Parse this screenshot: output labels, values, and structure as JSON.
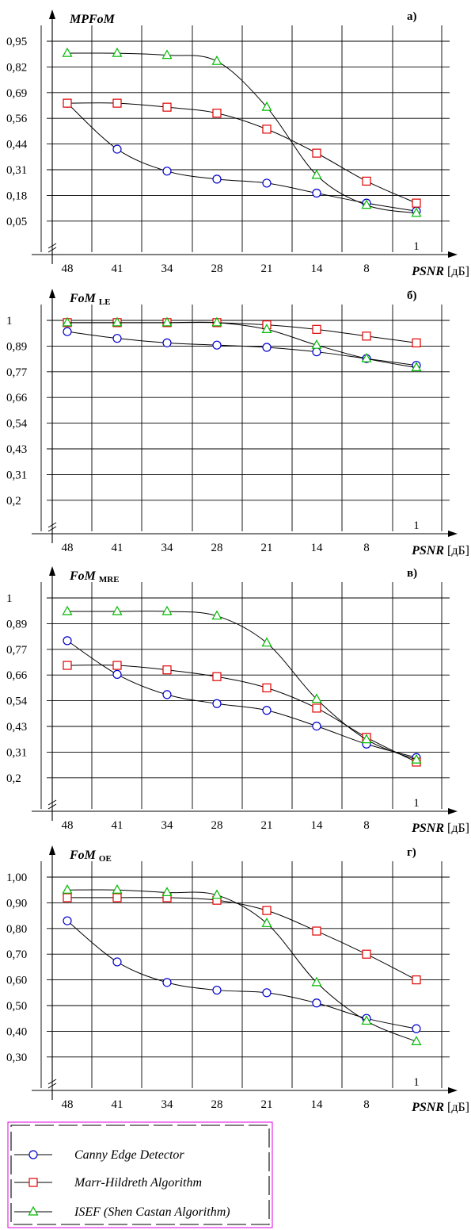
{
  "chart_data": [
    {
      "type": "line",
      "panel_label": "а)",
      "ylabel_main": "MPFoM",
      "ylabel_sub": "",
      "xlabel_main": "PSNR",
      "xlabel_unit": "[дБ]",
      "corner_mark": "1",
      "categories": [
        "48",
        "41",
        "34",
        "28",
        "21",
        "14",
        "8",
        "1"
      ],
      "yticks": [
        "0,95",
        "0,82",
        "0,69",
        "0,56",
        "0,44",
        "0,31",
        "0,18",
        "0,05"
      ],
      "ylim": [
        0.05,
        0.95
      ],
      "series": [
        {
          "marker": "circle",
          "color": "#0000cc",
          "values": [
            0.64,
            0.41,
            0.3,
            0.26,
            0.24,
            0.19,
            0.14,
            0.1
          ]
        },
        {
          "marker": "square",
          "color": "#e00000",
          "values": [
            0.64,
            0.64,
            0.62,
            0.59,
            0.51,
            0.39,
            0.25,
            0.14
          ]
        },
        {
          "marker": "triangle",
          "color": "#00bb00",
          "values": [
            0.89,
            0.89,
            0.88,
            0.85,
            0.62,
            0.28,
            0.13,
            0.09
          ]
        }
      ]
    },
    {
      "type": "line",
      "panel_label": "б)",
      "ylabel_main": "FoM",
      "ylabel_sub": "LE",
      "xlabel_main": "PSNR",
      "xlabel_unit": "[дБ]",
      "corner_mark": "1",
      "categories": [
        "48",
        "41",
        "34",
        "28",
        "21",
        "14",
        "8",
        "1"
      ],
      "yticks": [
        "1",
        "0,89",
        "0,77",
        "0,66",
        "0,54",
        "0,43",
        "0,31",
        "0,2"
      ],
      "ylim": [
        0.2,
        1.0
      ],
      "series": [
        {
          "marker": "circle",
          "color": "#0000cc",
          "values": [
            0.95,
            0.92,
            0.9,
            0.89,
            0.88,
            0.86,
            0.83,
            0.8
          ]
        },
        {
          "marker": "square",
          "color": "#e00000",
          "values": [
            0.99,
            0.99,
            0.99,
            0.99,
            0.98,
            0.96,
            0.93,
            0.9
          ]
        },
        {
          "marker": "triangle",
          "color": "#00bb00",
          "values": [
            0.99,
            0.99,
            0.99,
            0.99,
            0.96,
            0.89,
            0.83,
            0.79
          ]
        }
      ]
    },
    {
      "type": "line",
      "panel_label": "в)",
      "ylabel_main": "FoM",
      "ylabel_sub": "MRE",
      "xlabel_main": "PSNR",
      "xlabel_unit": "[дБ]",
      "corner_mark": "1",
      "categories": [
        "48",
        "41",
        "34",
        "28",
        "21",
        "14",
        "8",
        "1"
      ],
      "yticks": [
        "1",
        "0,89",
        "0,77",
        "0,66",
        "0,54",
        "0,43",
        "0,31",
        "0,2"
      ],
      "ylim": [
        0.2,
        1.0
      ],
      "series": [
        {
          "marker": "circle",
          "color": "#0000cc",
          "values": [
            0.81,
            0.66,
            0.57,
            0.53,
            0.5,
            0.43,
            0.35,
            0.29
          ]
        },
        {
          "marker": "square",
          "color": "#e00000",
          "values": [
            0.7,
            0.7,
            0.68,
            0.65,
            0.6,
            0.51,
            0.38,
            0.27
          ]
        },
        {
          "marker": "triangle",
          "color": "#00bb00",
          "values": [
            0.94,
            0.94,
            0.94,
            0.92,
            0.8,
            0.55,
            0.37,
            0.28
          ]
        }
      ]
    },
    {
      "type": "line",
      "panel_label": "г)",
      "ylabel_main": "FoM",
      "ylabel_sub": "OE",
      "xlabel_main": "PSNR",
      "xlabel_unit": "[дБ]",
      "corner_mark": "1",
      "categories": [
        "48",
        "41",
        "34",
        "28",
        "21",
        "14",
        "8",
        "1"
      ],
      "yticks": [
        "1,00",
        "0,90",
        "0,80",
        "0,70",
        "0,60",
        "0,50",
        "0,40",
        "0,30"
      ],
      "ylim": [
        0.3,
        1.0
      ],
      "series": [
        {
          "marker": "circle",
          "color": "#0000cc",
          "values": [
            0.83,
            0.67,
            0.59,
            0.56,
            0.55,
            0.51,
            0.45,
            0.41
          ]
        },
        {
          "marker": "square",
          "color": "#e00000",
          "values": [
            0.92,
            0.92,
            0.92,
            0.91,
            0.87,
            0.79,
            0.7,
            0.6
          ]
        },
        {
          "marker": "triangle",
          "color": "#00bb00",
          "values": [
            0.95,
            0.95,
            0.94,
            0.93,
            0.82,
            0.59,
            0.44,
            0.36
          ]
        }
      ]
    }
  ],
  "legend": [
    {
      "label": "Canny Edge Detector",
      "marker": "circle",
      "color": "#0000cc"
    },
    {
      "label": "Marr-Hildreth Algorithm",
      "marker": "square",
      "color": "#e00000"
    },
    {
      "label": "ISEF (Shen Castan Algorithm)",
      "marker": "triangle",
      "color": "#00bb00"
    }
  ],
  "legend_border_color": "#e000e0"
}
